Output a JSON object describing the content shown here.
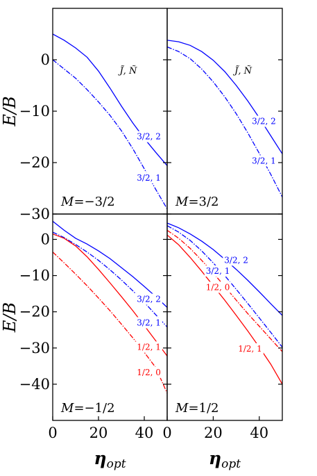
{
  "chart_data": [
    {
      "type": "line",
      "panel_label": "M=−3/2",
      "header": "J̃, Ñ",
      "ylabel": "E/B",
      "xlim": [
        0,
        50
      ],
      "ylim": [
        -30,
        10
      ],
      "yticks": [
        "0",
        "−10",
        "−20",
        "−30"
      ],
      "yticks_values": [
        0,
        -10,
        -20,
        -30
      ],
      "series": [
        {
          "name": "3/2, 2",
          "color": "#0000ff",
          "style": "solid",
          "x": [
            0,
            5,
            10,
            15,
            20,
            25,
            30,
            35,
            40,
            45,
            50
          ],
          "y": [
            5.0,
            3.8,
            2.3,
            0.5,
            -2.2,
            -5.5,
            -9.0,
            -12.3,
            -15.3,
            -18.0,
            -20.6
          ]
        },
        {
          "name": "3/2, 1",
          "color": "#0000ff",
          "style": "dashed",
          "x": [
            0,
            5,
            10,
            15,
            20,
            25,
            30,
            35,
            40,
            45,
            50
          ],
          "y": [
            0.0,
            -1.8,
            -3.6,
            -5.8,
            -8.2,
            -10.8,
            -13.8,
            -17.3,
            -21.2,
            -25.2,
            -29.0
          ]
        }
      ]
    },
    {
      "type": "line",
      "panel_label": "M=3/2",
      "header": "J̃, Ñ",
      "xlim": [
        0,
        50
      ],
      "ylim": [
        -30,
        10
      ],
      "series": [
        {
          "name": "3/2, 2",
          "color": "#0000ff",
          "style": "solid",
          "x": [
            0,
            5,
            10,
            15,
            20,
            25,
            30,
            35,
            40,
            45,
            50
          ],
          "y": [
            3.8,
            3.5,
            2.8,
            1.6,
            -0.1,
            -2.3,
            -5.0,
            -8.0,
            -11.3,
            -14.8,
            -18.3
          ]
        },
        {
          "name": "3/2, 1",
          "color": "#0000ff",
          "style": "dashed",
          "x": [
            0,
            5,
            10,
            15,
            20,
            25,
            30,
            35,
            40,
            45,
            50
          ],
          "y": [
            2.5,
            1.6,
            0.2,
            -1.8,
            -4.3,
            -7.2,
            -10.5,
            -14.2,
            -18.2,
            -22.3,
            -26.7
          ]
        }
      ]
    },
    {
      "type": "line",
      "panel_label": "M=−1/2",
      "ylabel": "E/B",
      "xlim": [
        0,
        50
      ],
      "ylim": [
        -50,
        7
      ],
      "xlabel": "η",
      "xlabel_sub": "opt",
      "xticks": [
        "0",
        "20",
        "40"
      ],
      "xticks_values": [
        0,
        20,
        40
      ],
      "yticks": [
        "0",
        "−10",
        "−20",
        "−30",
        "−40"
      ],
      "yticks_values": [
        0,
        -10,
        -20,
        -30,
        -40
      ],
      "series": [
        {
          "name": "3/2, 2",
          "color": "#0000ff",
          "style": "solid",
          "x": [
            0,
            5,
            10,
            15,
            20,
            25,
            30,
            35,
            40,
            45,
            50
          ],
          "y": [
            5.0,
            2.5,
            0.3,
            -1.3,
            -3.2,
            -5.3,
            -7.8,
            -10.3,
            -13.0,
            -15.8,
            -18.8
          ]
        },
        {
          "name": "3/2, 1",
          "color": "#0000ff",
          "style": "dashed",
          "x": [
            0,
            5,
            10,
            15,
            20,
            25,
            30,
            35,
            40,
            45,
            50
          ],
          "y": [
            2.0,
            0.5,
            -1.4,
            -3.5,
            -5.8,
            -8.4,
            -11.2,
            -14.2,
            -17.4,
            -20.8,
            -24.2
          ]
        },
        {
          "name": "1/2, 1",
          "color": "#ff0000",
          "style": "solid",
          "x": [
            0,
            5,
            10,
            15,
            20,
            25,
            30,
            35,
            40,
            45,
            50
          ],
          "y": [
            1.5,
            0.3,
            -1.8,
            -4.8,
            -8.3,
            -12.0,
            -15.8,
            -19.7,
            -23.8,
            -28.0,
            -32.2
          ]
        },
        {
          "name": "1/2, 0",
          "color": "#ff0000",
          "style": "dashed",
          "x": [
            0,
            5,
            10,
            15,
            20,
            25,
            30,
            35,
            40,
            45,
            50
          ],
          "y": [
            -3.5,
            -6.5,
            -9.6,
            -12.8,
            -16.2,
            -19.7,
            -23.4,
            -27.2,
            -31.2,
            -35.4,
            -42.5
          ]
        }
      ]
    },
    {
      "type": "line",
      "panel_label": "M=1/2",
      "xlim": [
        0,
        50
      ],
      "ylim": [
        -50,
        7
      ],
      "xlabel": "η",
      "xlabel_sub": "opt",
      "xticks": [
        "0",
        "20",
        "40"
      ],
      "xticks_values": [
        0,
        20,
        40
      ],
      "series": [
        {
          "name": "3/2, 2",
          "color": "#0000ff",
          "style": "solid",
          "x": [
            0,
            5,
            10,
            15,
            20,
            25,
            30,
            35,
            40,
            45,
            50
          ],
          "y": [
            4.5,
            3.2,
            1.5,
            -0.5,
            -2.8,
            -5.5,
            -8.3,
            -11.3,
            -14.5,
            -17.8,
            -21.0
          ]
        },
        {
          "name": "3/2, 1",
          "color": "#0000ff",
          "style": "dashed",
          "x": [
            0,
            5,
            10,
            15,
            20,
            25,
            30,
            35,
            40,
            45,
            50
          ],
          "y": [
            3.8,
            2.0,
            -0.3,
            -3.2,
            -6.5,
            -10.0,
            -13.8,
            -17.7,
            -21.7,
            -25.7,
            -29.8
          ]
        },
        {
          "name": "1/2, 0",
          "color": "#ff0000",
          "style": "dashed",
          "x": [
            0,
            5,
            10,
            15,
            20,
            25,
            30,
            35,
            40,
            45,
            50
          ],
          "y": [
            2.5,
            0.3,
            -2.5,
            -5.8,
            -9.3,
            -13.0,
            -16.8,
            -20.5,
            -24.0,
            -27.5,
            -31.0
          ]
        },
        {
          "name": "1/2, 1",
          "color": "#ff0000",
          "style": "solid",
          "x": [
            0,
            5,
            10,
            15,
            20,
            25,
            30,
            35,
            40,
            45,
            50
          ],
          "y": [
            1.2,
            -1.5,
            -5.0,
            -8.8,
            -12.8,
            -16.8,
            -21.0,
            -25.3,
            -29.8,
            -34.5,
            -40.0
          ]
        }
      ]
    }
  ]
}
